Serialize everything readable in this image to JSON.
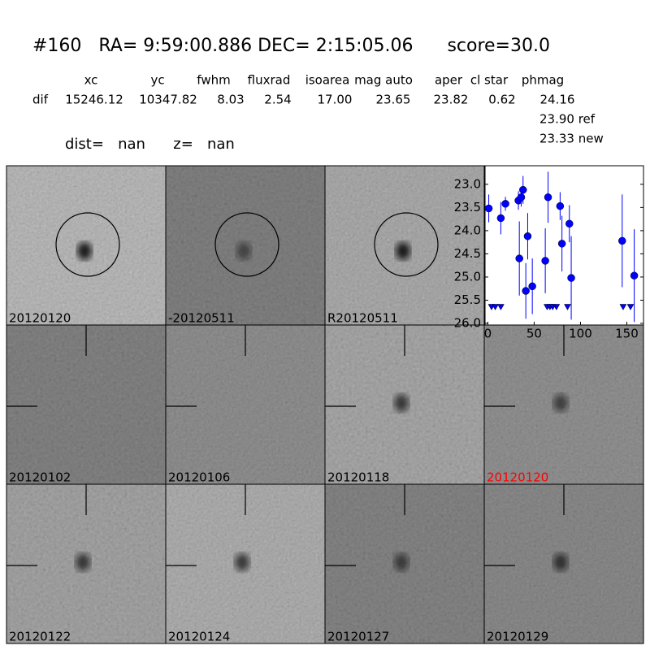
{
  "header": {
    "title": "#160   RA= 9:59:00.886 DEC= 2:15:05.06      score=30.0",
    "columns": [
      "xc",
      "yc",
      "fwhm",
      "fluxrad",
      "isoarea",
      "mag auto",
      "aper",
      "cl star",
      "phmag"
    ],
    "row_label": "dif",
    "row": [
      "15246.12",
      "10347.82",
      "8.03",
      "2.54",
      "17.00",
      "23.65",
      "23.82",
      "0.62",
      "24.16"
    ],
    "phmag_ref": "23.90 ref",
    "phmag_new": "23.33 new",
    "dist": "dist=   nan      z=   nan"
  },
  "stamps": [
    {
      "label": "20120120",
      "color": "#000000"
    },
    {
      "label": "-20120511",
      "color": "#000000"
    },
    {
      "label": "R20120511",
      "color": "#000000"
    },
    {
      "label": "20120102",
      "color": "#000000"
    },
    {
      "label": "20120106",
      "color": "#000000"
    },
    {
      "label": "20120118",
      "color": "#000000"
    },
    {
      "label": "20120120",
      "color": "#ff0000"
    },
    {
      "label": "20120122",
      "color": "#000000"
    },
    {
      "label": "20120124",
      "color": "#000000"
    },
    {
      "label": "20120127",
      "color": "#000000"
    },
    {
      "label": "20120129",
      "color": "#000000"
    }
  ],
  "chart_data": {
    "type": "scatter",
    "xlim": [
      -3,
      168
    ],
    "ylim": [
      26.0,
      22.6
    ],
    "xticks": [
      0,
      50,
      100,
      150
    ],
    "yticks": [
      {
        "value": 23,
        "label": "23.0"
      },
      23.5,
      {
        "value": 24,
        "label": "24.0"
      },
      24.5,
      {
        "value": 25,
        "label": "25.0"
      },
      25.5,
      {
        "value": 26,
        "label": "26.0"
      }
    ],
    "series": [
      {
        "color": "#0000ff",
        "marker": "circle",
        "x": [
          1,
          14,
          19,
          33,
          34,
          36,
          38,
          41,
          43,
          48,
          62,
          65,
          78,
          80,
          88,
          90,
          145,
          158
        ],
        "values": [
          23.52,
          23.73,
          23.42,
          23.35,
          24.6,
          23.28,
          23.12,
          25.3,
          24.12,
          25.2,
          24.65,
          23.28,
          23.47,
          24.28,
          23.85,
          25.02,
          24.22,
          24.97
        ],
        "errors": [
          0.3,
          0.35,
          0.15,
          0.2,
          0.8,
          0.2,
          0.3,
          0.6,
          0.5,
          0.6,
          0.7,
          0.55,
          0.3,
          0.6,
          0.4,
          0.9,
          1.0,
          1.0
        ]
      },
      {
        "color": "#0000ff",
        "marker": "triangle-down",
        "x": [
          4,
          8,
          14,
          64,
          67,
          70,
          74,
          86,
          146,
          154
        ],
        "values": [
          25.5,
          25.5,
          25.5,
          25.5,
          25.5,
          25.5,
          25.5,
          25.5,
          25.5,
          25.5
        ]
      }
    ]
  }
}
